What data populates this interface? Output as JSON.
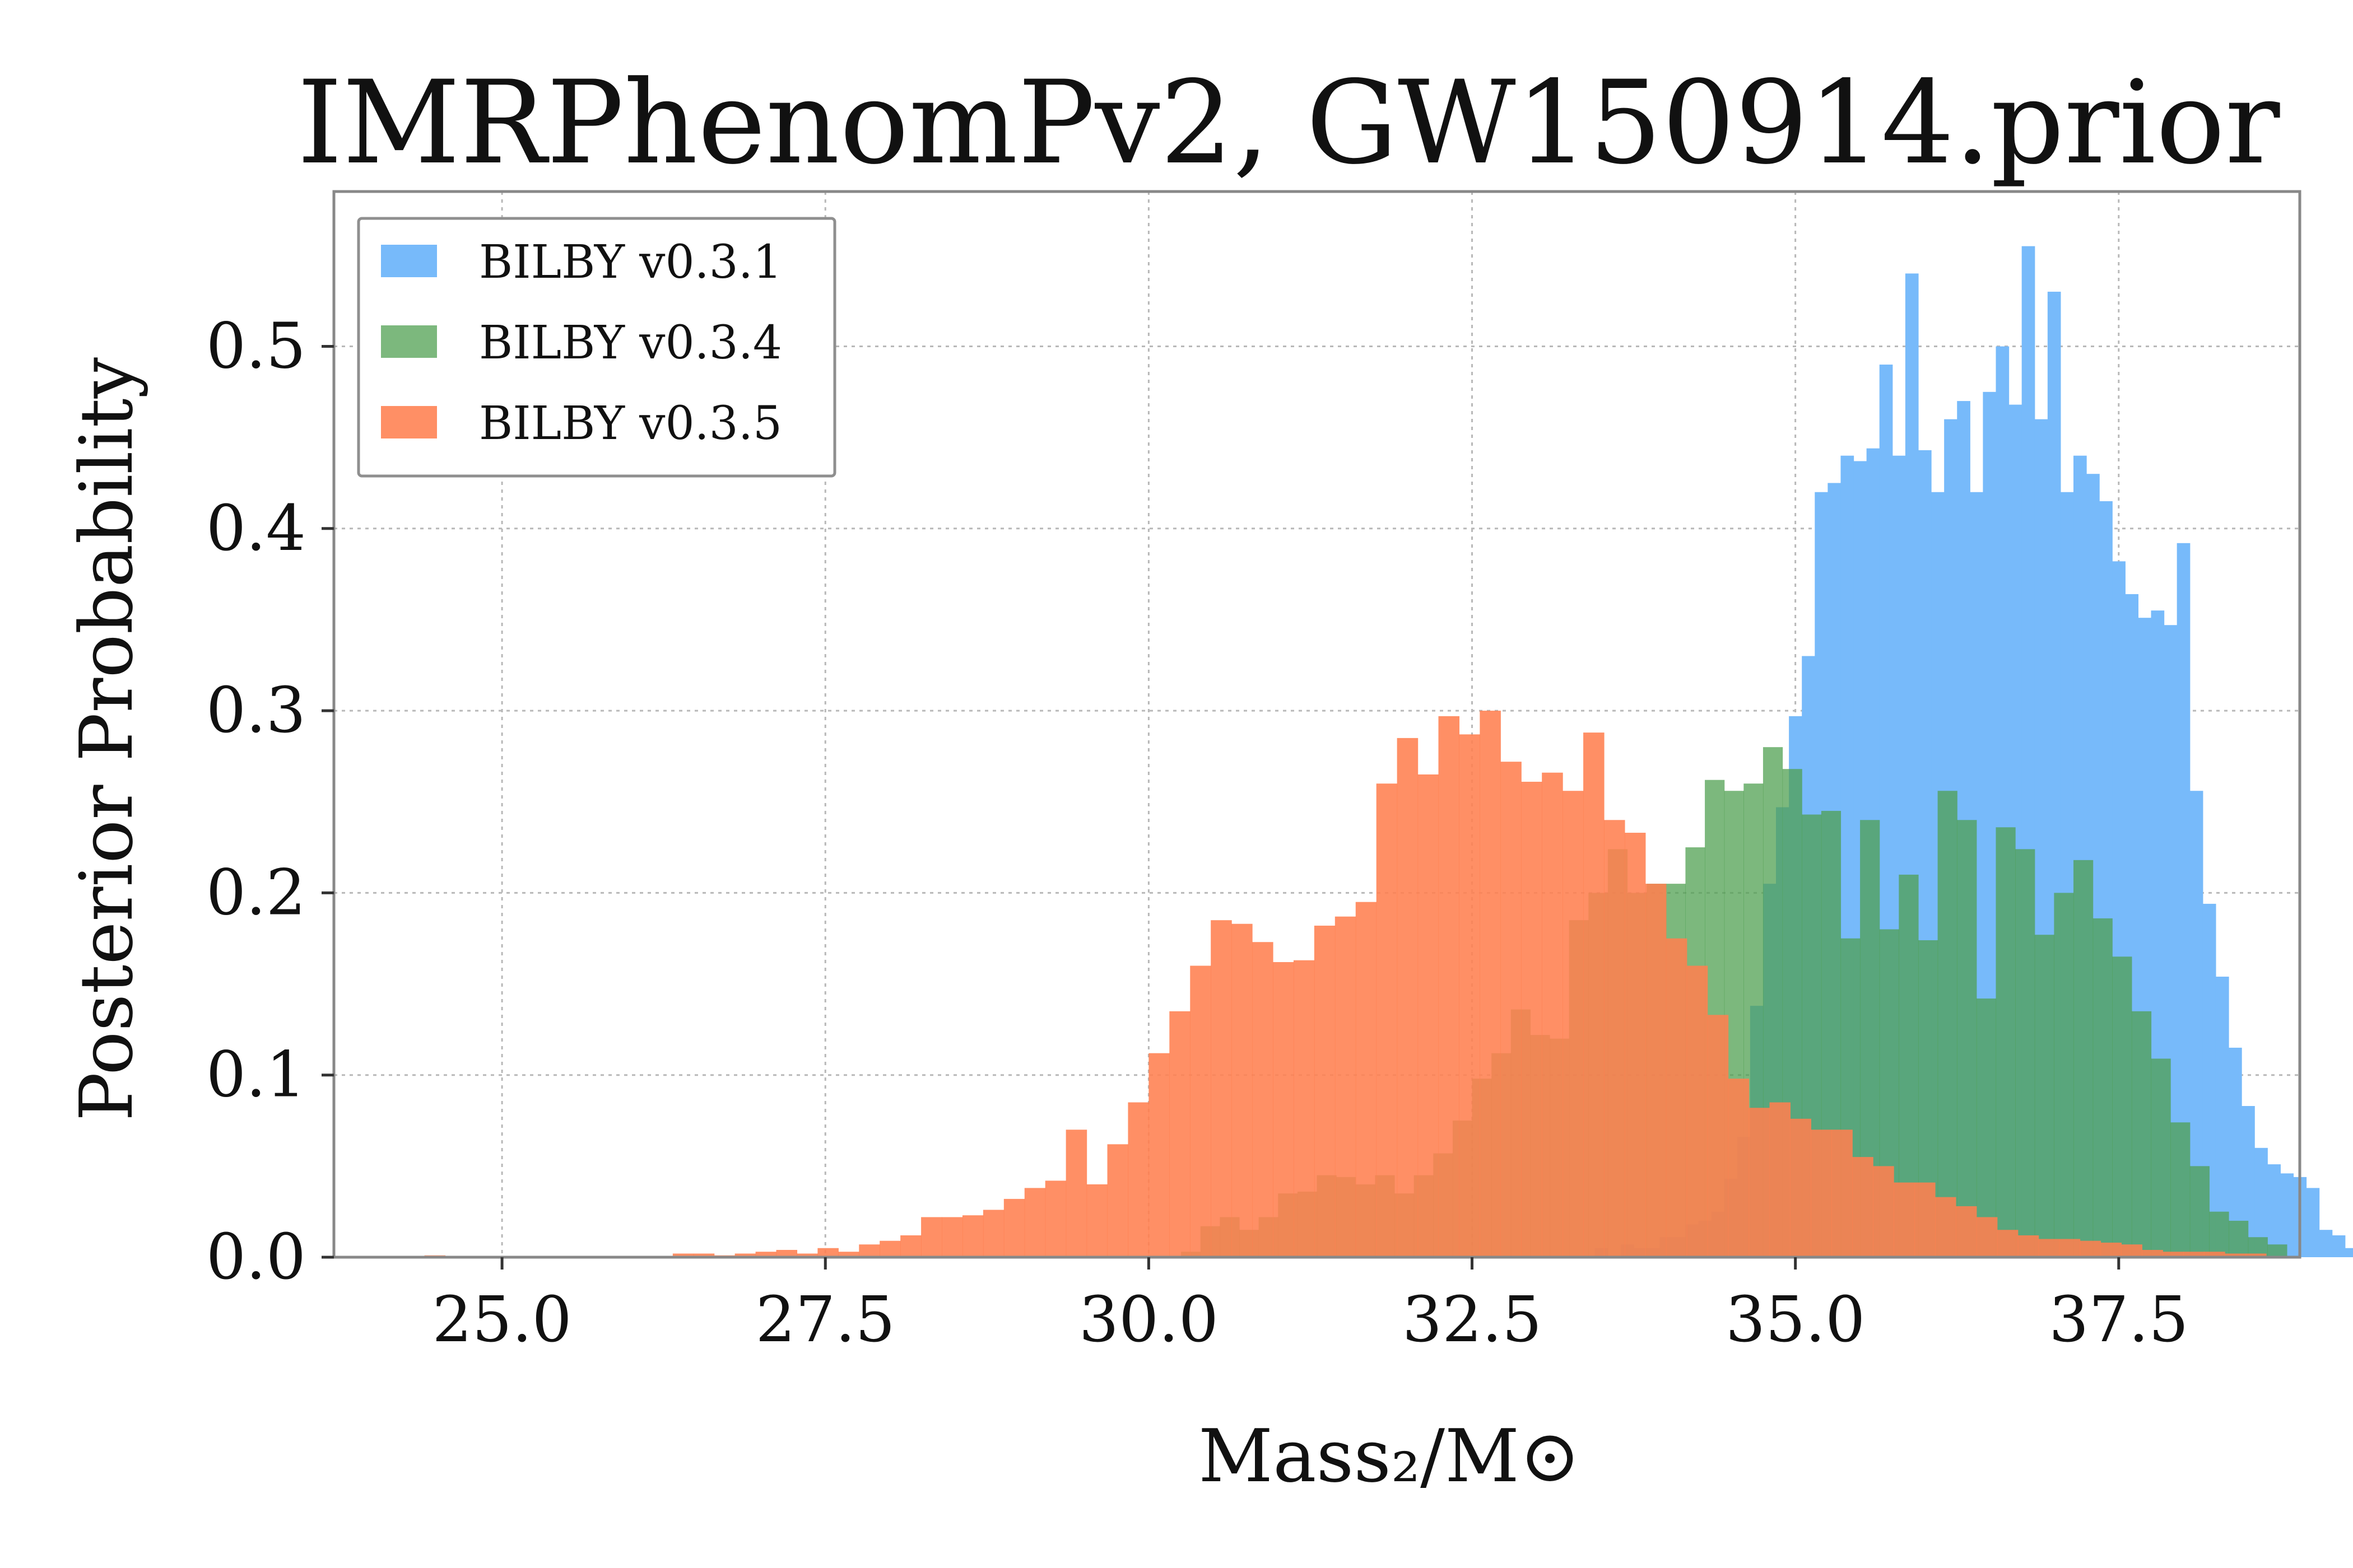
{
  "chart_data": {
    "type": "bar",
    "subtype": "histogram",
    "title": "IMRPhenomPv2, GW150914.prior",
    "xlabel": "Mass₂/M⊙",
    "ylabel": "Posterior Probability",
    "xlim": [
      23.7,
      38.9
    ],
    "ylim": [
      0,
      0.585
    ],
    "xticks": [
      "25.0",
      "27.5",
      "30.0",
      "32.5",
      "35.0",
      "37.5"
    ],
    "yticks": [
      "0.0",
      "0.1",
      "0.2",
      "0.3",
      "0.4",
      "0.5"
    ],
    "grid": true,
    "legend_position": "top-left",
    "series": [
      {
        "name": "BILBY v0.3.1",
        "color": "#77bafa",
        "opacity": 1.0,
        "bin_start": 33.35,
        "bin_width": 0.1,
        "values": [
          0.0,
          0.005,
          0.0,
          0.007,
          0.005,
          0.005,
          0.011,
          0.011,
          0.018,
          0.02,
          0.025,
          0.043,
          0.066,
          0.138,
          0.205,
          0.247,
          0.297,
          0.33,
          0.42,
          0.425,
          0.44,
          0.437,
          0.444,
          0.49,
          0.44,
          0.54,
          0.443,
          0.42,
          0.46,
          0.47,
          0.42,
          0.475,
          0.5,
          0.468,
          0.555,
          0.46,
          0.53,
          0.42,
          0.44,
          0.43,
          0.415,
          0.382,
          0.364,
          0.351,
          0.355,
          0.347,
          0.392,
          0.256,
          0.194,
          0.154,
          0.115,
          0.083,
          0.06,
          0.051,
          0.046,
          0.044,
          0.038,
          0.015,
          0.012,
          0.005,
          0.002
        ]
      },
      {
        "name": "BILBY v0.3.4",
        "color": "#4e9f50",
        "opacity": 0.74,
        "bin_start": 30.25,
        "bin_width": 0.15,
        "values": [
          0.003,
          0.017,
          0.022,
          0.015,
          0.022,
          0.035,
          0.036,
          0.045,
          0.044,
          0.04,
          0.045,
          0.035,
          0.045,
          0.057,
          0.075,
          0.098,
          0.112,
          0.136,
          0.122,
          0.12,
          0.185,
          0.2,
          0.224,
          0.2,
          0.205,
          0.205,
          0.225,
          0.262,
          0.256,
          0.26,
          0.28,
          0.268,
          0.243,
          0.245,
          0.175,
          0.24,
          0.18,
          0.21,
          0.174,
          0.256,
          0.24,
          0.142,
          0.236,
          0.224,
          0.177,
          0.2,
          0.218,
          0.186,
          0.165,
          0.135,
          0.109,
          0.074,
          0.05,
          0.025,
          0.02,
          0.011,
          0.007
        ]
      },
      {
        "name": "BILBY v0.3.5",
        "color": "#ff7f50",
        "opacity": 0.88,
        "bin_start": 24.4,
        "bin_width": 0.16,
        "values": [
          0.001,
          0.0,
          0.0,
          0.0,
          0.0,
          0.0,
          0.0,
          0.0,
          0.0,
          0.0,
          0.0,
          0.0,
          0.002,
          0.002,
          0.001,
          0.002,
          0.003,
          0.004,
          0.002,
          0.005,
          0.003,
          0.007,
          0.009,
          0.012,
          0.022,
          0.022,
          0.023,
          0.026,
          0.032,
          0.038,
          0.042,
          0.07,
          0.04,
          0.062,
          0.085,
          0.112,
          0.135,
          0.16,
          0.185,
          0.183,
          0.173,
          0.162,
          0.163,
          0.182,
          0.187,
          0.195,
          0.26,
          0.285,
          0.265,
          0.297,
          0.287,
          0.3,
          0.272,
          0.261,
          0.266,
          0.256,
          0.288,
          0.24,
          0.233,
          0.205,
          0.175,
          0.16,
          0.133,
          0.098,
          0.082,
          0.085,
          0.076,
          0.07,
          0.07,
          0.055,
          0.05,
          0.041,
          0.041,
          0.033,
          0.028,
          0.022,
          0.015,
          0.012,
          0.01,
          0.01,
          0.009,
          0.008,
          0.007,
          0.004,
          0.003,
          0.003,
          0.003,
          0.002,
          0.002
        ]
      }
    ]
  }
}
